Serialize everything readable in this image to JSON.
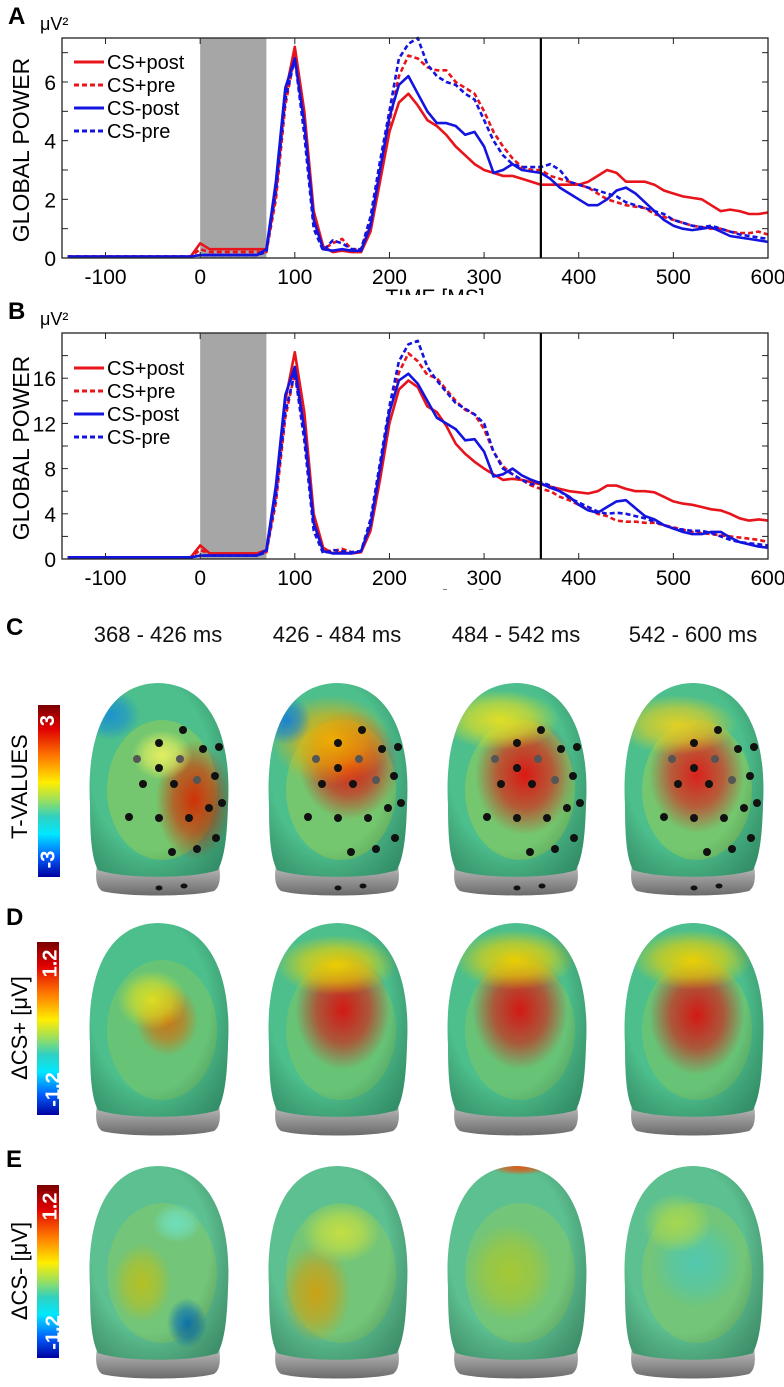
{
  "panel_labels": [
    "A",
    "B",
    "C",
    "D",
    "E"
  ],
  "colors": {
    "cs_plus": "#e8141c",
    "cs_minus": "#1414e0",
    "stimulus": "#a6a6a6",
    "marker": "#000000"
  },
  "chart_data": [
    {
      "type": "line",
      "panel": "A",
      "unit_label": "μV²",
      "ylabel": "GLOBAL POWER",
      "xlabel": "TIME [MS]",
      "xlim": [
        -146,
        600
      ],
      "ylim": [
        0,
        7.5
      ],
      "xticks": [
        -100,
        0,
        100,
        200,
        300,
        400,
        500,
        600
      ],
      "yticks": [
        0,
        2,
        4,
        6
      ],
      "stimulus_window": [
        0,
        70
      ],
      "marker_line": 360,
      "legend_placement": "top-left",
      "x": [
        -140,
        -130,
        -120,
        -110,
        -100,
        -90,
        -80,
        -70,
        -60,
        -50,
        -40,
        -30,
        -20,
        -10,
        0,
        10,
        20,
        30,
        40,
        50,
        60,
        70,
        80,
        90,
        100,
        110,
        120,
        130,
        140,
        150,
        160,
        170,
        180,
        190,
        200,
        210,
        220,
        230,
        240,
        250,
        260,
        270,
        280,
        290,
        300,
        310,
        320,
        330,
        340,
        350,
        360,
        370,
        380,
        390,
        400,
        410,
        420,
        430,
        440,
        450,
        460,
        470,
        480,
        490,
        500,
        510,
        520,
        530,
        540,
        550,
        560,
        570,
        580,
        590,
        600
      ],
      "series": [
        {
          "name": "CS+post",
          "color": "#e8141c",
          "dash": false,
          "values": [
            0.05,
            0.05,
            0.05,
            0.05,
            0.05,
            0.05,
            0.05,
            0.05,
            0.05,
            0.05,
            0.05,
            0.05,
            0.05,
            0.05,
            0.5,
            0.3,
            0.3,
            0.3,
            0.3,
            0.3,
            0.3,
            0.3,
            2.2,
            5.6,
            7.2,
            5.0,
            1.6,
            0.4,
            0.2,
            0.25,
            0.2,
            0.2,
            0.9,
            2.6,
            4.3,
            5.3,
            5.6,
            5.2,
            4.7,
            4.5,
            4.2,
            3.8,
            3.5,
            3.2,
            3.0,
            2.9,
            2.8,
            2.8,
            2.7,
            2.6,
            2.5,
            2.5,
            2.5,
            2.5,
            2.5,
            2.6,
            2.8,
            3.0,
            2.9,
            2.6,
            2.6,
            2.6,
            2.5,
            2.3,
            2.2,
            2.1,
            2.05,
            2.0,
            1.8,
            1.6,
            1.65,
            1.6,
            1.5,
            1.5,
            1.55
          ]
        },
        {
          "name": "CS+pre",
          "color": "#e8141c",
          "dash": true,
          "values": [
            0.05,
            0.05,
            0.05,
            0.05,
            0.05,
            0.05,
            0.05,
            0.05,
            0.05,
            0.05,
            0.05,
            0.05,
            0.05,
            0.05,
            0.3,
            0.2,
            0.2,
            0.2,
            0.2,
            0.2,
            0.2,
            0.2,
            2.0,
            5.2,
            6.9,
            4.6,
            1.3,
            0.3,
            0.5,
            0.65,
            0.3,
            0.3,
            1.2,
            3.0,
            4.6,
            6.2,
            6.9,
            6.8,
            6.5,
            6.4,
            6.4,
            6.0,
            5.8,
            5.6,
            5.0,
            4.3,
            3.8,
            3.4,
            3.1,
            3.0,
            3.0,
            2.8,
            2.7,
            2.6,
            2.5,
            2.4,
            2.2,
            2.0,
            1.9,
            1.8,
            1.75,
            1.7,
            1.5,
            1.4,
            1.3,
            1.2,
            1.1,
            1.05,
            1.0,
            1.0,
            0.9,
            0.85,
            0.85,
            0.9,
            0.8
          ]
        },
        {
          "name": "CS-post",
          "color": "#1414e0",
          "dash": false,
          "values": [
            0.05,
            0.05,
            0.05,
            0.05,
            0.05,
            0.05,
            0.05,
            0.05,
            0.05,
            0.05,
            0.05,
            0.05,
            0.05,
            0.05,
            0.1,
            0.1,
            0.1,
            0.1,
            0.1,
            0.1,
            0.1,
            0.3,
            2.6,
            5.8,
            6.8,
            4.6,
            1.3,
            0.3,
            0.25,
            0.3,
            0.25,
            0.25,
            1.1,
            3.0,
            4.8,
            5.9,
            6.2,
            5.6,
            5.0,
            4.6,
            4.6,
            4.5,
            4.2,
            4.3,
            3.8,
            2.9,
            3.0,
            3.2,
            3.0,
            2.95,
            2.9,
            2.7,
            2.4,
            2.2,
            2.0,
            1.8,
            1.8,
            2.0,
            2.3,
            2.4,
            2.2,
            1.9,
            1.6,
            1.3,
            1.1,
            1.0,
            0.95,
            1.0,
            1.05,
            0.9,
            0.75,
            0.7,
            0.65,
            0.6,
            0.55
          ]
        },
        {
          "name": "CS-pre",
          "color": "#1414e0",
          "dash": true,
          "values": [
            0.05,
            0.05,
            0.05,
            0.05,
            0.05,
            0.05,
            0.05,
            0.05,
            0.05,
            0.05,
            0.05,
            0.05,
            0.05,
            0.05,
            0.1,
            0.1,
            0.1,
            0.1,
            0.1,
            0.1,
            0.1,
            0.2,
            2.3,
            5.4,
            6.8,
            4.2,
            1.0,
            0.25,
            0.6,
            0.5,
            0.3,
            0.3,
            1.4,
            3.3,
            5.0,
            6.8,
            7.3,
            7.5,
            6.6,
            6.2,
            6.0,
            5.9,
            5.6,
            5.4,
            4.7,
            4.0,
            3.5,
            3.2,
            3.1,
            3.1,
            3.1,
            3.2,
            3.0,
            2.6,
            2.5,
            2.4,
            2.3,
            2.2,
            2.1,
            1.9,
            1.8,
            1.7,
            1.6,
            1.5,
            1.3,
            1.2,
            1.1,
            1.05,
            1.1,
            1.0,
            0.9,
            0.8,
            0.75,
            0.7,
            0.65
          ]
        }
      ]
    },
    {
      "type": "line",
      "panel": "B",
      "unit_label": "μV²",
      "ylabel": "GLOBAL POWER",
      "xlabel": "TIME [MS]",
      "xlim": [
        -146,
        600
      ],
      "ylim": [
        0,
        20
      ],
      "xticks": [
        -100,
        0,
        100,
        200,
        300,
        400,
        500,
        600
      ],
      "yticks": [
        0,
        4,
        8,
        12,
        16
      ],
      "stimulus_window": [
        0,
        70
      ],
      "marker_line": 360,
      "legend_placement": "top-left",
      "x": [
        -140,
        -130,
        -120,
        -110,
        -100,
        -90,
        -80,
        -70,
        -60,
        -50,
        -40,
        -30,
        -20,
        -10,
        0,
        10,
        20,
        30,
        40,
        50,
        60,
        70,
        80,
        90,
        100,
        110,
        120,
        130,
        140,
        150,
        160,
        170,
        180,
        190,
        200,
        210,
        220,
        230,
        240,
        250,
        260,
        270,
        280,
        290,
        300,
        310,
        320,
        330,
        340,
        350,
        360,
        370,
        380,
        390,
        400,
        410,
        420,
        430,
        440,
        450,
        460,
        470,
        480,
        490,
        500,
        510,
        520,
        530,
        540,
        550,
        560,
        570,
        580,
        590,
        600
      ],
      "series": [
        {
          "name": "CS+post",
          "color": "#e8141c",
          "dash": false,
          "values": [
            0.15,
            0.15,
            0.15,
            0.15,
            0.15,
            0.15,
            0.15,
            0.15,
            0.15,
            0.15,
            0.15,
            0.15,
            0.15,
            0.15,
            1.2,
            0.5,
            0.5,
            0.5,
            0.5,
            0.5,
            0.5,
            0.8,
            6,
            14,
            18.3,
            13,
            4,
            1,
            0.5,
            0.6,
            0.5,
            0.6,
            2.5,
            7,
            12,
            15,
            15.8,
            15.2,
            13.5,
            13.0,
            11.8,
            10.2,
            9.3,
            8.6,
            8.0,
            7.5,
            7.0,
            7.1,
            7.0,
            6.8,
            6.6,
            6.4,
            6.2,
            6.0,
            5.9,
            5.8,
            6.0,
            6.5,
            6.5,
            6.2,
            6.0,
            6.0,
            5.9,
            5.5,
            5.1,
            4.9,
            4.8,
            4.6,
            4.4,
            4.3,
            4.0,
            3.6,
            3.4,
            3.5,
            3.4
          ]
        },
        {
          "name": "CS+pre",
          "color": "#e8141c",
          "dash": true,
          "values": [
            0.15,
            0.15,
            0.15,
            0.15,
            0.15,
            0.15,
            0.15,
            0.15,
            0.15,
            0.15,
            0.15,
            0.15,
            0.15,
            0.15,
            0.8,
            0.5,
            0.5,
            0.5,
            0.5,
            0.5,
            0.5,
            0.6,
            5,
            12.5,
            16.5,
            11.5,
            3.2,
            0.7,
            0.7,
            0.9,
            0.6,
            0.7,
            3,
            8,
            13,
            16.5,
            18.2,
            17.5,
            16.3,
            16.0,
            15.0,
            14.0,
            13.2,
            12.8,
            11.5,
            9.5,
            8.2,
            7.5,
            7.0,
            6.5,
            6.2,
            6.0,
            5.5,
            5.2,
            4.8,
            4.4,
            4.0,
            3.8,
            3.4,
            3.3,
            3.3,
            3.2,
            3.2,
            3.0,
            2.8,
            2.6,
            2.4,
            2.3,
            2.2,
            2.1,
            2.0,
            1.9,
            1.8,
            1.7,
            1.5
          ]
        },
        {
          "name": "CS-post",
          "color": "#1414e0",
          "dash": false,
          "values": [
            0.15,
            0.15,
            0.15,
            0.15,
            0.15,
            0.15,
            0.15,
            0.15,
            0.15,
            0.15,
            0.15,
            0.15,
            0.15,
            0.15,
            0.3,
            0.3,
            0.3,
            0.3,
            0.3,
            0.3,
            0.3,
            0.8,
            6.5,
            14.5,
            17,
            11.5,
            3.2,
            0.7,
            0.5,
            0.5,
            0.5,
            0.7,
            3,
            8,
            13,
            15.8,
            16.4,
            15.5,
            14.0,
            12.5,
            12.0,
            11.5,
            10.5,
            10.6,
            9.5,
            7.3,
            7.5,
            8.0,
            7.4,
            7.0,
            6.7,
            6.3,
            6.0,
            5.5,
            4.8,
            4.3,
            4.1,
            4.6,
            5.1,
            5.2,
            4.5,
            3.8,
            3.5,
            3.0,
            2.7,
            2.4,
            2.2,
            2.2,
            2.4,
            2.4,
            1.9,
            1.5,
            1.3,
            1.1,
            1.0
          ]
        },
        {
          "name": "CS-pre",
          "color": "#1414e0",
          "dash": true,
          "values": [
            0.15,
            0.15,
            0.15,
            0.15,
            0.15,
            0.15,
            0.15,
            0.15,
            0.15,
            0.15,
            0.15,
            0.15,
            0.15,
            0.15,
            0.3,
            0.3,
            0.3,
            0.3,
            0.3,
            0.3,
            0.3,
            0.6,
            5.5,
            13,
            16.5,
            10.5,
            2.5,
            0.5,
            0.8,
            0.7,
            0.6,
            0.7,
            3.5,
            8.5,
            13.5,
            17.5,
            19.0,
            19.3,
            17.0,
            15.8,
            14.8,
            13.8,
            13.3,
            12.8,
            12.0,
            9.5,
            8.0,
            7.5,
            7.0,
            6.6,
            6.8,
            6.5,
            6.0,
            5.4,
            5.0,
            4.6,
            4.2,
            4.0,
            4.1,
            4.0,
            3.8,
            3.6,
            3.3,
            3.0,
            2.7,
            2.6,
            2.5,
            2.5,
            2.3,
            2.0,
            1.7,
            1.5,
            1.4,
            1.3,
            1.2
          ]
        }
      ]
    }
  ],
  "topo": {
    "time_windows": [
      "368 - 426 ms",
      "426 - 484 ms",
      "484 - 542 ms",
      "542 - 600 ms"
    ],
    "rows": [
      {
        "panel": "C",
        "colorbar_label": "T-VALUES",
        "max_label": "3",
        "min_label": "-3",
        "electrodes_shown": true
      },
      {
        "panel": "D",
        "colorbar_label": "ΔCS+ [μV]",
        "max_label": "1.2",
        "min_label": "-1.2",
        "electrodes_shown": false
      },
      {
        "panel": "E",
        "colorbar_label": "ΔCS- [μV]",
        "max_label": "1.2",
        "min_label": "-1.2",
        "electrodes_shown": false
      }
    ]
  }
}
